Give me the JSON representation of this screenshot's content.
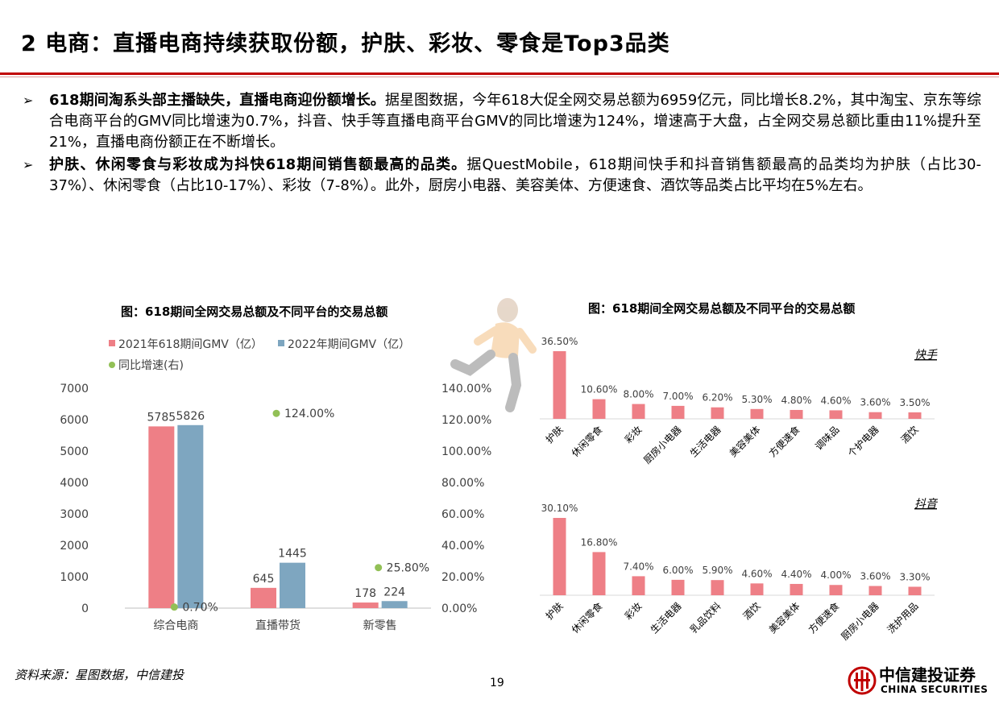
{
  "title": "2 电商：直播电商持续获取份额，护肤、彩妆、零食是Top3品类",
  "bullets": [
    {
      "mark": "➢",
      "lead": "618期间淘系头部主播缺失，直播电商迎份额增长。",
      "text": "据星图数据，今年618大促全网交易总额为6959亿元，同比增长8.2%，其中淘宝、京东等综合电商平台的GMV同比增速为0.7%，抖音、快手等直播电商平台GMV的同比增速为124%，增速高于大盘，占全网交易总额比重由11%提升至21%，直播电商份额正在不断增长。"
    },
    {
      "mark": "➢",
      "lead": "护肤、休闲零食与彩妆成为抖快618期间销售额最高的品类。",
      "text": "据QuestMobile，618期间快手和抖音销售额最高的品类均为护肤（占比30-37%）、休闲零食（占比10-17%）、彩妆（7-8%）。此外，厨房小电器、美容美体、方便速食、酒饮等品类占比平均在5%左右。"
    }
  ],
  "chart_data": [
    {
      "type": "bar",
      "title": "图：618期间全网交易总额及不同平台的交易总额",
      "categories": [
        "综合电商",
        "直播带货",
        "新零售"
      ],
      "series": [
        {
          "name": "2021年618期间GMV（亿）",
          "values": [
            5785,
            645,
            178
          ],
          "color": "#ee7f86"
        },
        {
          "name": "2022年期间GMV（亿）",
          "values": [
            5826,
            1445,
            224
          ],
          "color": "#7ea6c0"
        },
        {
          "name": "同比增速(右)",
          "type": "scatter",
          "axis": "right",
          "values": [
            0.7,
            124.0,
            25.8
          ],
          "labels": [
            "0.70%",
            "124.00%",
            "25.80%"
          ],
          "color": "#92c056"
        }
      ],
      "ylim": [
        0,
        7000
      ],
      "yticks": [
        "0",
        "1000",
        "2000",
        "3000",
        "4000",
        "5000",
        "6000",
        "7000"
      ],
      "y2lim": [
        0,
        140
      ],
      "y2ticks": [
        "0.00%",
        "20.00%",
        "40.00%",
        "60.00%",
        "80.00%",
        "100.00%",
        "120.00%",
        "140.00%"
      ],
      "legend": "top-left",
      "grid": false
    },
    {
      "type": "bar",
      "title": "图：618期间全网交易总额及不同平台的交易总额",
      "subtitle": "快手",
      "categories": [
        "护肤",
        "休闲零食",
        "彩妆",
        "厨房小电器",
        "生活电器",
        "美容美体",
        "方便速食",
        "调味品",
        "个护电器",
        "酒饮"
      ],
      "values": [
        36.5,
        10.6,
        8.0,
        7.0,
        6.2,
        5.3,
        4.8,
        4.6,
        3.6,
        3.5
      ],
      "labels": [
        "36.50%",
        "10.60%",
        "8.00%",
        "7.00%",
        "6.20%",
        "5.30%",
        "4.80%",
        "4.60%",
        "3.60%",
        "3.50%"
      ],
      "color": "#ee7f86",
      "grid": false
    },
    {
      "type": "bar",
      "subtitle": "抖音",
      "categories": [
        "护肤",
        "休闲零食",
        "彩妆",
        "生活电器",
        "乳品饮料",
        "酒饮",
        "美容美体",
        "方便速食",
        "厨房小电器",
        "洗护用品"
      ],
      "values": [
        30.1,
        16.8,
        7.4,
        6.0,
        5.9,
        4.6,
        4.4,
        4.0,
        3.6,
        3.3
      ],
      "labels": [
        "30.10%",
        "16.80%",
        "7.40%",
        "6.00%",
        "5.90%",
        "4.60%",
        "4.40%",
        "4.00%",
        "3.60%",
        "3.30%"
      ],
      "color": "#ee7f86",
      "grid": false
    }
  ],
  "footer": {
    "source": "资料来源：星图数据，中信建投",
    "page": "19",
    "logo_cn": "中信建投证券",
    "logo_en": "CHINA SECURITIES",
    "logo_icon": "china-securities-seal-icon",
    "accent": "#c00000"
  }
}
